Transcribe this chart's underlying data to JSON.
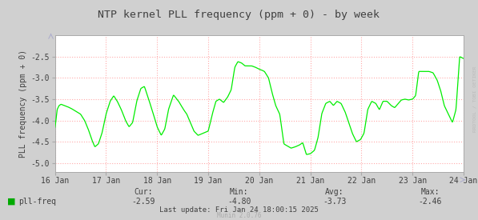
{
  "title": "NTP kernel PLL frequency (ppm + 0) - by week",
  "ylabel": "PLL frequency (ppm + 0)",
  "outer_bg_color": "#d0d0d0",
  "plot_bg_color": "#ffffff",
  "grid_color": "#ffaaaa",
  "line_color": "#00ee00",
  "text_color": "#404040",
  "legend_label": "pll-freq",
  "legend_color": "#00aa00",
  "cur_val": "-2.59",
  "min_val": "-4.80",
  "avg_val": "-3.73",
  "max_val": "-2.46",
  "last_update": "Last update: Fri Jan 24 18:00:15 2025",
  "munin_version": "Munin 2.0.76",
  "watermark": "RRDTOOL / TOBI OETIKER",
  "ylim": [
    -5.2,
    -2.0
  ],
  "yticks": [
    -5.0,
    -4.5,
    -4.0,
    -3.5,
    -3.0,
    -2.5
  ],
  "x_start": 0,
  "x_end": 8,
  "xtick_labels": [
    "16 Jan",
    "17 Jan",
    "18 Jan",
    "19 Jan",
    "20 Jan",
    "21 Jan",
    "22 Jan",
    "23 Jan",
    "24 Jan"
  ],
  "xtick_positions": [
    0,
    1,
    2,
    3,
    4,
    5,
    6,
    7,
    8
  ],
  "signal_t": [
    0.0,
    0.04,
    0.08,
    0.12,
    0.18,
    0.25,
    0.32,
    0.4,
    0.5,
    0.58,
    0.65,
    0.72,
    0.78,
    0.85,
    0.92,
    1.0,
    1.08,
    1.15,
    1.22,
    1.3,
    1.38,
    1.45,
    1.52,
    1.6,
    1.68,
    1.75,
    1.82,
    1.9,
    2.0,
    2.08,
    2.15,
    2.22,
    2.32,
    2.42,
    2.52,
    2.58,
    2.65,
    2.72,
    2.8,
    2.9,
    3.0,
    3.08,
    3.15,
    3.22,
    3.3,
    3.38,
    3.45,
    3.52,
    3.58,
    3.65,
    3.72,
    3.78,
    3.85,
    3.92,
    4.0,
    4.05,
    4.1,
    4.18,
    4.25,
    4.32,
    4.4,
    4.48,
    4.55,
    4.62,
    4.7,
    4.78,
    4.85,
    4.92,
    5.0,
    5.08,
    5.15,
    5.22,
    5.3,
    5.38,
    5.45,
    5.52,
    5.6,
    5.68,
    5.75,
    5.82,
    5.9,
    5.98,
    6.05,
    6.12,
    6.2,
    6.28,
    6.35,
    6.42,
    6.5,
    6.58,
    6.65,
    6.72,
    6.78,
    6.85,
    6.92,
    7.0,
    7.06,
    7.12,
    7.18,
    7.25,
    7.32,
    7.4,
    7.48,
    7.55,
    7.62,
    7.7,
    7.78,
    7.85,
    7.92,
    8.0
  ],
  "signal_y": [
    -4.2,
    -3.75,
    -3.65,
    -3.62,
    -3.65,
    -3.68,
    -3.72,
    -3.78,
    -3.85,
    -4.0,
    -4.2,
    -4.45,
    -4.62,
    -4.55,
    -4.3,
    -3.85,
    -3.55,
    -3.42,
    -3.55,
    -3.75,
    -4.0,
    -4.15,
    -4.05,
    -3.55,
    -3.25,
    -3.2,
    -3.45,
    -3.75,
    -4.15,
    -4.35,
    -4.2,
    -3.75,
    -3.4,
    -3.55,
    -3.75,
    -3.85,
    -4.05,
    -4.25,
    -4.35,
    -4.3,
    -4.25,
    -3.85,
    -3.55,
    -3.5,
    -3.58,
    -3.45,
    -3.28,
    -2.75,
    -2.62,
    -2.65,
    -2.72,
    -2.72,
    -2.72,
    -2.75,
    -2.8,
    -2.82,
    -2.85,
    -3.0,
    -3.35,
    -3.65,
    -3.85,
    -4.55,
    -4.6,
    -4.65,
    -4.62,
    -4.58,
    -4.52,
    -4.8,
    -4.78,
    -4.7,
    -4.4,
    -3.85,
    -3.6,
    -3.55,
    -3.65,
    -3.55,
    -3.6,
    -3.8,
    -4.05,
    -4.3,
    -4.5,
    -4.45,
    -4.3,
    -3.75,
    -3.55,
    -3.6,
    -3.75,
    -3.55,
    -3.55,
    -3.65,
    -3.7,
    -3.6,
    -3.52,
    -3.5,
    -3.52,
    -3.5,
    -3.42,
    -2.85,
    -2.85,
    -2.85,
    -2.85,
    -2.88,
    -3.05,
    -3.3,
    -3.65,
    -3.85,
    -4.05,
    -3.75,
    -2.5,
    -2.55
  ]
}
